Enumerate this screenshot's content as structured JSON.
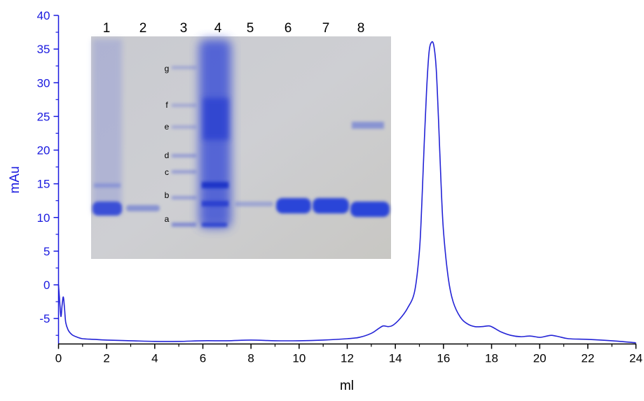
{
  "chart_data": {
    "type": "line",
    "xlabel": "ml",
    "ylabel": "mAu",
    "xlim": [
      0,
      24
    ],
    "ylim": [
      -8.5,
      40
    ],
    "x_ticks": [
      "0",
      "2",
      "4",
      "6",
      "8",
      "10",
      "12",
      "14",
      "16",
      "18",
      "20",
      "22",
      "24"
    ],
    "y_ticks": [
      "-5",
      "0",
      "5",
      "10",
      "15",
      "20",
      "25",
      "30",
      "35",
      "40"
    ],
    "grid": false,
    "line_color": "#2323d6",
    "axis_color_y": "#1a1adf",
    "axis_color_x": "#000000",
    "series": [
      {
        "x": [
          0.0,
          0.05,
          0.1,
          0.15,
          0.2,
          0.25,
          0.3,
          0.4,
          0.5,
          0.6,
          0.8,
          1.0,
          1.5,
          2.0,
          3.0,
          4.0,
          5.0,
          6.0,
          7.0,
          8.0,
          9.0,
          10.0,
          11.0,
          12.0,
          12.5,
          13.0,
          13.3,
          13.5,
          13.7,
          13.9,
          14.2,
          14.5,
          14.8,
          15.0,
          15.1,
          15.2,
          15.3,
          15.4,
          15.5,
          15.6,
          15.7,
          15.8,
          15.9,
          16.0,
          16.2,
          16.4,
          16.7,
          17.0,
          17.3,
          17.6,
          17.9,
          18.1,
          18.4,
          18.8,
          19.2,
          19.6,
          20.0,
          20.3,
          20.5,
          20.8,
          21.2,
          22.0,
          23.0,
          24.0
        ],
        "y": [
          0.0,
          -2.5,
          -4.7,
          -3.0,
          -1.8,
          -3.5,
          -5.6,
          -6.7,
          -7.2,
          -7.5,
          -7.8,
          -8.0,
          -8.1,
          -8.2,
          -8.3,
          -8.4,
          -8.4,
          -8.3,
          -8.3,
          -8.2,
          -8.3,
          -8.3,
          -8.2,
          -8.0,
          -7.8,
          -7.2,
          -6.5,
          -6.1,
          -6.2,
          -6.0,
          -5.0,
          -3.5,
          -1.0,
          5.0,
          12.0,
          21.0,
          29.0,
          34.5,
          36.0,
          35.5,
          32.0,
          24.0,
          15.0,
          8.0,
          1.0,
          -2.5,
          -4.8,
          -5.8,
          -6.2,
          -6.2,
          -6.1,
          -6.4,
          -7.0,
          -7.5,
          -7.7,
          -7.6,
          -7.8,
          -7.6,
          -7.5,
          -7.7,
          -8.0,
          -8.1,
          -8.3,
          -8.6
        ]
      }
    ],
    "inset": {
      "lanes": [
        "1",
        "2",
        "3",
        "4",
        "5",
        "6",
        "7",
        "8"
      ],
      "marker_labels": [
        "g",
        "f",
        "e",
        "d",
        "c",
        "b",
        "a"
      ]
    }
  }
}
